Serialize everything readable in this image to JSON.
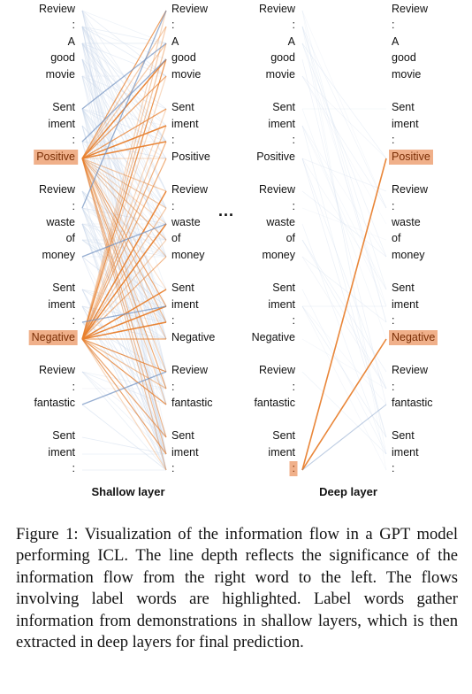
{
  "tokens": [
    "Review",
    ":",
    "A",
    "good",
    "movie",
    "Sent",
    "iment",
    ":",
    "Positive",
    "Review",
    ":",
    "waste",
    "of",
    "money",
    "Sent",
    "iment",
    ":",
    "Negative",
    "Review",
    ":",
    "fantastic",
    "Sent",
    "iment",
    ":"
  ],
  "shallow_title": "Shallow layer",
  "deep_title": "Deep layer",
  "ellipsis": "...",
  "caption": "Figure 1: Visualization of the information flow in a GPT model performing ICL. The line depth reflects the significance of the information flow from the right word to the left. The flows involving label words are highlighted. Label words gather information from demonstrations in shallow layers, which is then extracted in deep layers for final prediction.",
  "colors": {
    "label_highlight": "#f0b08a",
    "flow_orange": "#e8802e",
    "flow_blue": "#6d8fbf",
    "flow_faint": "#c9d7ea"
  }
}
